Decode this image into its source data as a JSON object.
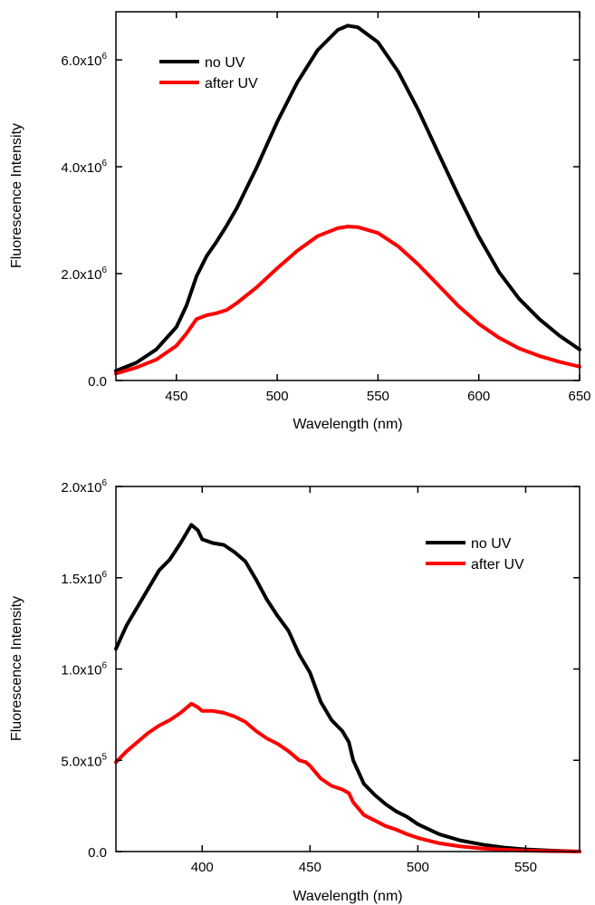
{
  "chart_data": [
    {
      "type": "line",
      "xlabel": "Wavelength (nm)",
      "ylabel": "Fluorescence Intensity",
      "xlim": [
        420,
        650
      ],
      "ylim": [
        0,
        6900000
      ],
      "xticks": [
        450,
        500,
        550,
        600,
        650
      ],
      "xtick_labels": [
        "450",
        "500",
        "550",
        "600",
        "650"
      ],
      "yticks": [
        0,
        2000000,
        4000000,
        6000000
      ],
      "ytick_labels": [
        {
          "mantissa": "0.0",
          "exp": ""
        },
        {
          "mantissa": "2.0x10",
          "exp": "6"
        },
        {
          "mantissa": "4.0x10",
          "exp": "6"
        },
        {
          "mantissa": "6.0x10",
          "exp": "6"
        }
      ],
      "grid": false,
      "legend_position": "top-left",
      "colors": {
        "no_uv": "#000000",
        "after_uv": "#ff0000"
      },
      "series": [
        {
          "name": "no UV",
          "color": "#000000",
          "x": [
            420,
            430,
            440,
            450,
            455,
            460,
            465,
            470,
            475,
            480,
            490,
            500,
            510,
            520,
            530,
            535,
            540,
            550,
            560,
            570,
            580,
            590,
            600,
            610,
            620,
            630,
            640,
            650
          ],
          "y": [
            180000,
            330000,
            580000,
            1000000,
            1400000,
            1950000,
            2330000,
            2600000,
            2900000,
            3230000,
            4000000,
            4840000,
            5580000,
            6180000,
            6560000,
            6640000,
            6610000,
            6330000,
            5780000,
            5060000,
            4250000,
            3450000,
            2690000,
            2030000,
            1530000,
            1150000,
            840000,
            580000
          ]
        },
        {
          "name": "after UV",
          "color": "#ff0000",
          "x": [
            420,
            430,
            440,
            450,
            455,
            460,
            465,
            470,
            475,
            480,
            490,
            500,
            510,
            520,
            530,
            535,
            540,
            550,
            560,
            570,
            580,
            590,
            600,
            610,
            620,
            630,
            640,
            650
          ],
          "y": [
            130000,
            240000,
            390000,
            650000,
            880000,
            1150000,
            1220000,
            1260000,
            1320000,
            1450000,
            1750000,
            2100000,
            2430000,
            2700000,
            2850000,
            2880000,
            2870000,
            2760000,
            2510000,
            2170000,
            1780000,
            1390000,
            1060000,
            800000,
            600000,
            460000,
            350000,
            260000
          ]
        }
      ]
    },
    {
      "type": "line",
      "xlabel": "Wavelength (nm)",
      "ylabel": "Fluorescence Intensity",
      "xlim": [
        360,
        575
      ],
      "ylim": [
        0,
        2000000
      ],
      "xticks": [
        400,
        450,
        500,
        550
      ],
      "xtick_labels": [
        "400",
        "450",
        "500",
        "550"
      ],
      "yticks": [
        0,
        500000,
        1000000,
        1500000,
        2000000
      ],
      "ytick_labels": [
        {
          "mantissa": "0.0",
          "exp": ""
        },
        {
          "mantissa": "5.0x10",
          "exp": "5"
        },
        {
          "mantissa": "1.0x10",
          "exp": "6"
        },
        {
          "mantissa": "1.5x10",
          "exp": "6"
        },
        {
          "mantissa": "2.0x10",
          "exp": "6"
        }
      ],
      "grid": false,
      "legend_position": "top-right",
      "colors": {
        "no_uv": "#000000",
        "after_uv": "#ff0000"
      },
      "series": [
        {
          "name": "no UV",
          "color": "#000000",
          "x": [
            360,
            365,
            370,
            375,
            380,
            385,
            390,
            395,
            398,
            400,
            405,
            410,
            415,
            420,
            425,
            430,
            435,
            440,
            445,
            448,
            450,
            455,
            460,
            465,
            468,
            470,
            475,
            480,
            485,
            490,
            495,
            500,
            510,
            520,
            530,
            540,
            550,
            560,
            570,
            575
          ],
          "y": [
            1110000,
            1240000,
            1340000,
            1440000,
            1540000,
            1600000,
            1690000,
            1790000,
            1760000,
            1710000,
            1690000,
            1680000,
            1640000,
            1590000,
            1490000,
            1380000,
            1290000,
            1210000,
            1080000,
            1020000,
            980000,
            820000,
            720000,
            660000,
            600000,
            500000,
            370000,
            310000,
            260000,
            220000,
            190000,
            150000,
            95000,
            60000,
            38000,
            22000,
            12000,
            6000,
            2000,
            0
          ]
        },
        {
          "name": "after UV",
          "color": "#ff0000",
          "x": [
            360,
            365,
            370,
            375,
            380,
            385,
            390,
            395,
            398,
            400,
            405,
            410,
            415,
            420,
            425,
            430,
            435,
            440,
            445,
            448,
            450,
            455,
            460,
            465,
            468,
            470,
            475,
            480,
            485,
            490,
            495,
            500,
            510,
            520,
            530,
            540,
            550,
            560,
            570,
            575
          ],
          "y": [
            490000,
            550000,
            600000,
            650000,
            690000,
            720000,
            760000,
            810000,
            790000,
            770000,
            770000,
            760000,
            740000,
            710000,
            660000,
            620000,
            590000,
            550000,
            500000,
            490000,
            470000,
            400000,
            360000,
            340000,
            320000,
            270000,
            200000,
            170000,
            140000,
            120000,
            95000,
            75000,
            45000,
            28000,
            17000,
            10000,
            5000,
            2500,
            1000,
            0
          ]
        }
      ]
    }
  ]
}
